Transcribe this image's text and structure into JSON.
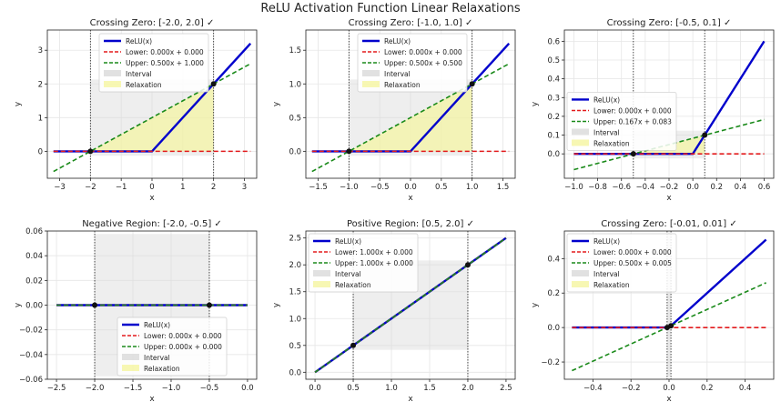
{
  "figure": {
    "title": "ReLU Activation Function Linear Relaxations"
  },
  "legend_labels": {
    "relu": "ReLU(x)",
    "interval": "Interval",
    "relaxation": "Relaxation"
  },
  "colors": {
    "relu": "#0000cc",
    "lower": "#e31a1c",
    "upper": "#1a8a1a",
    "interval_fill": "#d9d9d9",
    "relaxation_fill": "#f5f5a0",
    "point": "#111111"
  },
  "chart_data": [
    {
      "type": "line",
      "title": "Crossing Zero: [-2.0, 2.0] ✓",
      "xlabel": "x",
      "ylabel": "y",
      "xlim": [
        -3.4,
        3.4
      ],
      "ylim": [
        -0.8,
        3.6
      ],
      "xticks": [
        -3,
        -2,
        -1,
        0,
        1,
        2,
        3
      ],
      "xtick_labels": [
        "−3",
        "−2",
        "−1",
        "0",
        "1",
        "2",
        "3"
      ],
      "yticks": [
        0,
        1,
        2,
        3
      ],
      "ytick_labels": [
        "0",
        "1",
        "2",
        "3"
      ],
      "x_range": [
        -3.2,
        3.2
      ],
      "interval": [
        -2.0,
        2.0
      ],
      "lower": {
        "label": "Lower: 0.000x + 0.000",
        "slope": 0.0,
        "intercept": 0.0
      },
      "upper": {
        "label": "Upper: 0.500x + 1.000",
        "slope": 0.5,
        "intercept": 1.0
      },
      "relaxation_shown": true,
      "legend_loc": "upper-center",
      "grid": true
    },
    {
      "type": "line",
      "title": "Crossing Zero: [-1.0, 1.0] ✓",
      "xlabel": "x",
      "ylabel": "y",
      "xlim": [
        -1.7,
        1.7
      ],
      "ylim": [
        -0.4,
        1.8
      ],
      "xticks": [
        -1.5,
        -1.0,
        -0.5,
        0.0,
        0.5,
        1.0,
        1.5
      ],
      "xtick_labels": [
        "−1.5",
        "−1.0",
        "−0.5",
        "0.0",
        "0.5",
        "1.0",
        "1.5"
      ],
      "yticks": [
        0.0,
        0.5,
        1.0,
        1.5
      ],
      "ytick_labels": [
        "0.0",
        "0.5",
        "1.0",
        "1.5"
      ],
      "x_range": [
        -1.6,
        1.6
      ],
      "interval": [
        -1.0,
        1.0
      ],
      "lower": {
        "label": "Lower: 0.000x + 0.000",
        "slope": 0.0,
        "intercept": 0.0
      },
      "upper": {
        "label": "Upper: 0.500x + 0.500",
        "slope": 0.5,
        "intercept": 0.5
      },
      "relaxation_shown": true,
      "legend_loc": "upper-center",
      "grid": true
    },
    {
      "type": "line",
      "title": "Crossing Zero: [-0.5, 0.1] ✓",
      "xlabel": "x",
      "ylabel": "y",
      "xlim": [
        -1.08,
        0.68
      ],
      "ylim": [
        -0.13,
        0.66
      ],
      "xticks": [
        -1.0,
        -0.8,
        -0.6,
        -0.4,
        -0.2,
        0.0,
        0.2,
        0.4,
        0.6
      ],
      "xtick_labels": [
        "−1.0",
        "−0.8",
        "−0.6",
        "−0.4",
        "−0.2",
        "0.0",
        "0.2",
        "0.4",
        "0.6"
      ],
      "yticks": [
        0.0,
        0.1,
        0.2,
        0.3,
        0.4,
        0.5,
        0.6
      ],
      "ytick_labels": [
        "0.0",
        "0.1",
        "0.2",
        "0.3",
        "0.4",
        "0.5",
        "0.6"
      ],
      "x_range": [
        -1.0,
        0.6
      ],
      "interval": [
        -0.5,
        0.1
      ],
      "lower": {
        "label": "Lower: 0.000x + 0.000",
        "slope": 0.0,
        "intercept": 0.0
      },
      "upper": {
        "label": "Upper: 0.167x + 0.083",
        "slope": 0.167,
        "intercept": 0.083
      },
      "relaxation_shown": true,
      "legend_loc": "center-left",
      "grid": true
    },
    {
      "type": "line",
      "title": "Negative Region: [-2.0, -0.5] ✓",
      "xlabel": "x",
      "ylabel": "y",
      "xlim": [
        -2.62,
        0.12
      ],
      "ylim": [
        -0.06,
        0.06
      ],
      "xticks": [
        -2.5,
        -2.0,
        -1.5,
        -1.0,
        -0.5,
        0.0
      ],
      "xtick_labels": [
        "−2.5",
        "−2.0",
        "−1.5",
        "−1.0",
        "−0.5",
        "0.0"
      ],
      "yticks": [
        -0.06,
        -0.04,
        -0.02,
        0.0,
        0.02,
        0.04,
        0.06
      ],
      "ytick_labels": [
        "−0.06",
        "−0.04",
        "−0.02",
        "0.00",
        "0.02",
        "0.04",
        "0.06"
      ],
      "x_range": [
        -2.5,
        0.0
      ],
      "interval": [
        -2.0,
        -0.5
      ],
      "lower": {
        "label": "Lower: 0.000x + 0.000",
        "slope": 0.0,
        "intercept": 0.0
      },
      "upper": {
        "label": "Upper: 0.000x + 0.000",
        "slope": 0.0,
        "intercept": 0.0
      },
      "relaxation_shown": false,
      "legend_loc": "lower-center",
      "grid": true
    },
    {
      "type": "line",
      "title": "Positive Region: [0.5, 2.0] ✓",
      "xlabel": "x",
      "ylabel": "y",
      "xlim": [
        -0.12,
        2.62
      ],
      "ylim": [
        -0.13,
        2.63
      ],
      "xticks": [
        0.0,
        0.5,
        1.0,
        1.5,
        2.0,
        2.5
      ],
      "xtick_labels": [
        "0.0",
        "0.5",
        "1.0",
        "1.5",
        "2.0",
        "2.5"
      ],
      "yticks": [
        0.0,
        0.5,
        1.0,
        1.5,
        2.0,
        2.5
      ],
      "ytick_labels": [
        "0.0",
        "0.5",
        "1.0",
        "1.5",
        "2.0",
        "2.5"
      ],
      "x_range": [
        0.0,
        2.5
      ],
      "interval": [
        0.5,
        2.0
      ],
      "lower": {
        "label": "Lower: 1.000x + 0.000",
        "slope": 1.0,
        "intercept": 0.0
      },
      "upper": {
        "label": "Upper: 1.000x + 0.000",
        "slope": 1.0,
        "intercept": 0.0
      },
      "relaxation_shown": false,
      "legend_loc": "upper-left",
      "grid": true
    },
    {
      "type": "line",
      "title": "Crossing Zero: [-0.01, 0.01] ✓",
      "xlabel": "x",
      "ylabel": "y",
      "xlim": [
        -0.55,
        0.55
      ],
      "ylim": [
        -0.3,
        0.56
      ],
      "xticks": [
        -0.4,
        -0.2,
        0.0,
        0.2,
        0.4
      ],
      "xtick_labels": [
        "−0.4",
        "−0.2",
        "0.0",
        "0.2",
        "0.4"
      ],
      "yticks": [
        -0.2,
        0.0,
        0.2,
        0.4
      ],
      "ytick_labels": [
        "−0.2",
        "0.0",
        "0.2",
        "0.4"
      ],
      "x_range": [
        -0.51,
        0.51
      ],
      "interval": [
        -0.01,
        0.01
      ],
      "lower": {
        "label": "Lower: 0.000x + 0.000",
        "slope": 0.0,
        "intercept": 0.0
      },
      "upper": {
        "label": "Upper: 0.500x + 0.005",
        "slope": 0.5,
        "intercept": 0.005
      },
      "relaxation_shown": true,
      "legend_loc": "upper-left",
      "grid": true
    }
  ]
}
